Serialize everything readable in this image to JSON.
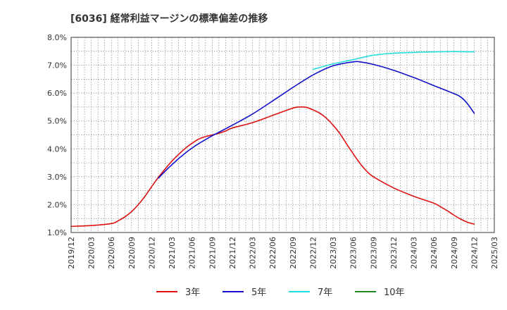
{
  "chart_data": {
    "type": "line",
    "title": "[6036]  経常利益マージンの標準偏差の推移",
    "xlabel": "",
    "ylabel": "",
    "ylim": [
      1.0,
      8.0
    ],
    "yticks": [
      "1.0%",
      "2.0%",
      "3.0%",
      "4.0%",
      "5.0%",
      "6.0%",
      "7.0%",
      "8.0%"
    ],
    "ytick_values": [
      1.0,
      2.0,
      3.0,
      4.0,
      5.0,
      6.0,
      7.0,
      8.0
    ],
    "xticks": [
      "2019/12",
      "2020/03",
      "2020/06",
      "2020/09",
      "2020/12",
      "2021/03",
      "2021/06",
      "2021/09",
      "2021/12",
      "2022/03",
      "2022/06",
      "2022/09",
      "2022/12",
      "2023/03",
      "2023/06",
      "2023/09",
      "2023/12",
      "2024/03",
      "2024/06",
      "2024/09",
      "2024/12",
      "2025/03"
    ],
    "grid": true,
    "legend_position": "bottom",
    "series": [
      {
        "name": "3年",
        "color": "#dd1111",
        "points": [
          [
            "2019/12",
            1.22
          ],
          [
            "2020/03",
            1.25
          ],
          [
            "2020/06",
            1.32
          ],
          [
            "2020/07",
            1.42
          ],
          [
            "2020/08",
            1.56
          ],
          [
            "2020/09",
            1.75
          ],
          [
            "2020/10",
            2.0
          ],
          [
            "2020/11",
            2.3
          ],
          [
            "2020/12",
            2.65
          ],
          [
            "2021/01",
            2.98
          ],
          [
            "2021/02",
            3.28
          ],
          [
            "2021/03",
            3.56
          ],
          [
            "2021/04",
            3.8
          ],
          [
            "2021/05",
            4.02
          ],
          [
            "2021/06",
            4.2
          ],
          [
            "2021/07",
            4.35
          ],
          [
            "2021/08",
            4.44
          ],
          [
            "2021/09",
            4.5
          ],
          [
            "2021/10",
            4.56
          ],
          [
            "2021/11",
            4.64
          ],
          [
            "2021/12",
            4.75
          ],
          [
            "2022/03",
            4.94
          ],
          [
            "2022/06",
            5.2
          ],
          [
            "2022/09",
            5.46
          ],
          [
            "2022/10",
            5.5
          ],
          [
            "2022/11",
            5.49
          ],
          [
            "2022/12",
            5.4
          ],
          [
            "2023/01",
            5.28
          ],
          [
            "2023/02",
            5.1
          ],
          [
            "2023/03",
            4.85
          ],
          [
            "2023/04",
            4.55
          ],
          [
            "2023/05",
            4.18
          ],
          [
            "2023/06",
            3.82
          ],
          [
            "2023/07",
            3.48
          ],
          [
            "2023/08",
            3.2
          ],
          [
            "2023/09",
            3.0
          ],
          [
            "2023/12",
            2.6
          ],
          [
            "2024/03",
            2.3
          ],
          [
            "2024/06",
            2.05
          ],
          [
            "2024/07",
            1.92
          ],
          [
            "2024/08",
            1.78
          ],
          [
            "2024/09",
            1.62
          ],
          [
            "2024/10",
            1.48
          ],
          [
            "2024/11",
            1.37
          ],
          [
            "2024/12",
            1.3
          ]
        ]
      },
      {
        "name": "5年",
        "color": "#1111cc",
        "points": [
          [
            "2021/01",
            2.95
          ],
          [
            "2021/02",
            3.2
          ],
          [
            "2021/03",
            3.43
          ],
          [
            "2021/04",
            3.65
          ],
          [
            "2021/05",
            3.85
          ],
          [
            "2021/06",
            4.03
          ],
          [
            "2021/07",
            4.19
          ],
          [
            "2021/08",
            4.33
          ],
          [
            "2021/09",
            4.47
          ],
          [
            "2021/12",
            4.85
          ],
          [
            "2022/03",
            5.25
          ],
          [
            "2022/06",
            5.72
          ],
          [
            "2022/09",
            6.2
          ],
          [
            "2022/12",
            6.65
          ],
          [
            "2023/03",
            6.98
          ],
          [
            "2023/06",
            7.12
          ],
          [
            "2023/07",
            7.12
          ],
          [
            "2023/09",
            7.03
          ],
          [
            "2023/12",
            6.82
          ],
          [
            "2024/03",
            6.56
          ],
          [
            "2024/06",
            6.27
          ],
          [
            "2024/09",
            5.98
          ],
          [
            "2024/10",
            5.86
          ],
          [
            "2024/11",
            5.62
          ],
          [
            "2024/12",
            5.28
          ]
        ]
      },
      {
        "name": "7年",
        "color": "#22dddd",
        "points": [
          [
            "2022/12",
            6.85
          ],
          [
            "2023/03",
            7.05
          ],
          [
            "2023/06",
            7.2
          ],
          [
            "2023/09",
            7.36
          ],
          [
            "2023/12",
            7.43
          ],
          [
            "2024/03",
            7.46
          ],
          [
            "2024/06",
            7.48
          ],
          [
            "2024/09",
            7.49
          ],
          [
            "2024/12",
            7.48
          ]
        ]
      },
      {
        "name": "10年",
        "color": "#228822",
        "points": []
      }
    ]
  }
}
